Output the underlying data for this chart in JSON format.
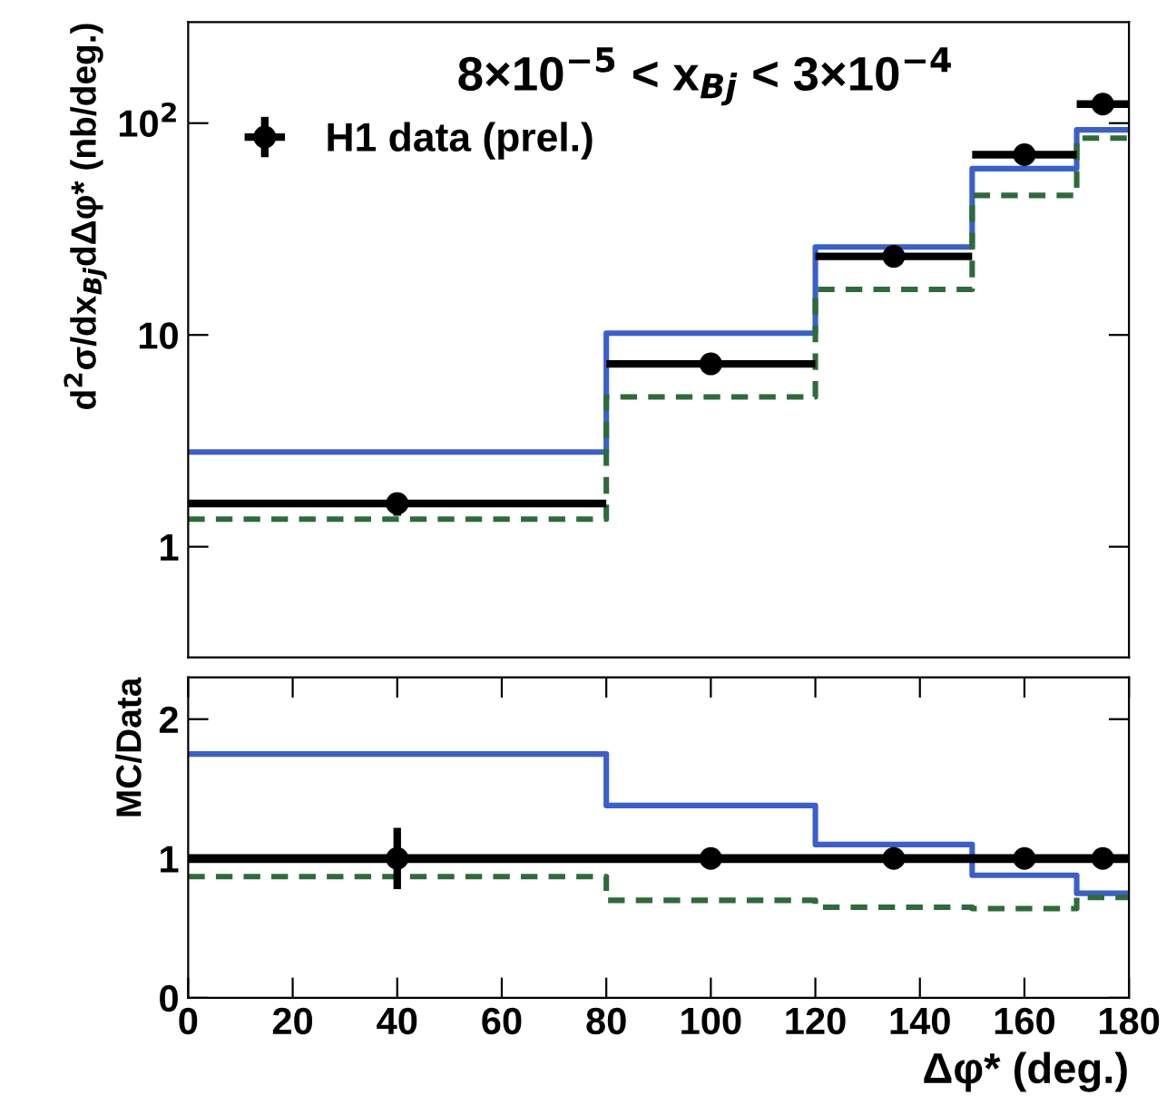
{
  "chart_data": [
    {
      "type": "step",
      "title": "8×10$^{−5}$ < x$_{Bj}$ < 3×10$^{−4}$",
      "ylabel": "d$^{2}$σ/dx$_{Bj}$dΔφ* (nb/deg.)",
      "xlim": [
        0,
        180
      ],
      "ylim": [
        0.3,
        300
      ],
      "yticks": [
        {
          "value": 1,
          "label": "1"
        },
        {
          "value": 10,
          "label": "10"
        },
        {
          "value": 100,
          "label": "10$^{2}$"
        }
      ],
      "log": "y",
      "grid": false,
      "legend": "top left",
      "tick_labels": "y",
      "series": [
        {
          "color": "#3a5fcd",
          "line_style": "solid",
          "x": [
            0,
            80,
            120,
            150,
            170,
            180
          ],
          "values": [
            2.8,
            10.2,
            26,
            61,
            93,
            93
          ]
        },
        {
          "color": "#2e6b3a",
          "line_style": "dashed",
          "x": [
            0,
            80,
            120,
            150,
            170,
            180
          ],
          "values": [
            1.35,
            5.1,
            16.4,
            45.6,
            85,
            85
          ]
        },
        {
          "type": "scatter",
          "name": "H1 data (prel.)",
          "color": "#000000",
          "marker": "circle",
          "x": [
            40,
            100,
            135,
            160,
            175
          ],
          "values": [
            1.6,
            7.3,
            23.5,
            71,
            123
          ],
          "xerrors": [
            40,
            20,
            15,
            10,
            5
          ],
          "errors": [
            0.2,
            null,
            null,
            null,
            null
          ]
        }
      ]
    },
    {
      "type": "step",
      "xlabel": "Δφ* (deg.)",
      "ylabel": "MC/Data",
      "xlim": [
        0,
        180
      ],
      "xticks": [
        0,
        20,
        40,
        60,
        80,
        100,
        120,
        140,
        160,
        180
      ],
      "ylim": [
        0,
        2.3
      ],
      "yticks": [
        0,
        1,
        2
      ],
      "grid": false,
      "ref_lines": [
        {
          "axis": "y",
          "value": 1,
          "color": "#000000"
        }
      ],
      "series": [
        {
          "color": "#3a5fcd",
          "line_style": "solid",
          "x": [
            0,
            80,
            120,
            150,
            170,
            180
          ],
          "values": [
            1.75,
            1.38,
            1.1,
            0.88,
            0.75,
            0.75
          ]
        },
        {
          "color": "#2e6b3a",
          "line_style": "dashed",
          "x": [
            0,
            80,
            120,
            150,
            170,
            180
          ],
          "values": [
            0.87,
            0.7,
            0.65,
            0.64,
            0.72,
            0.72
          ]
        },
        {
          "type": "scatter",
          "color": "#000000",
          "marker": "circle",
          "x": [
            40,
            100,
            135,
            160,
            175
          ],
          "values": [
            1,
            1,
            1,
            1,
            1
          ],
          "errors": [
            0.22,
            null,
            null,
            null,
            null
          ]
        }
      ]
    }
  ]
}
